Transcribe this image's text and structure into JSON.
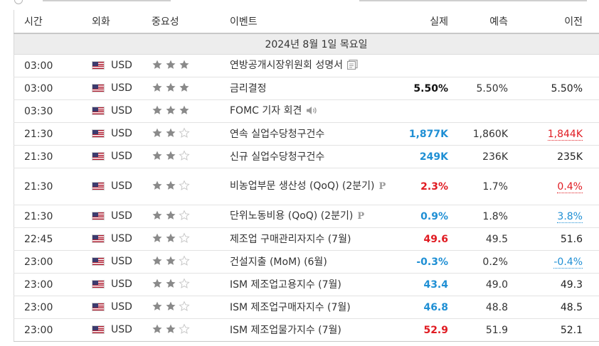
{
  "columns": {
    "time": "시간",
    "currency": "외화",
    "importance": "중요성",
    "event": "이벤트",
    "actual": "실제",
    "forecast": "예측",
    "previous": "이전"
  },
  "date_label": "2024년 8월 1일 목요일",
  "colors": {
    "actual_up": "#1f8fd4",
    "actual_down": "#e01b22",
    "star_filled": "#8a8a8a",
    "star_empty": "#c6c6c6",
    "date_row_bg": "#ededed"
  },
  "icons": {
    "speech": "document-icon",
    "audio": "speaker-icon",
    "preliminary": "preliminary-p-icon",
    "flag": "us-flag-icon"
  },
  "rows": [
    {
      "time": "03:00",
      "currency": "USD",
      "stars": 3,
      "event": "연방공개시장위원회 성명서",
      "icon": "document",
      "actual": "",
      "actual_class": "",
      "forecast": "",
      "previous": "",
      "previous_class": "prev-norm"
    },
    {
      "time": "03:00",
      "currency": "USD",
      "stars": 3,
      "event": "금리결정",
      "icon": "",
      "actual": "5.50%",
      "actual_class": "black",
      "forecast": "5.50%",
      "previous": "5.50%",
      "previous_class": "prev-norm"
    },
    {
      "time": "03:30",
      "currency": "USD",
      "stars": 3,
      "event": "FOMC 기자 회견",
      "icon": "speaker",
      "actual": "",
      "actual_class": "",
      "forecast": "",
      "previous": "",
      "previous_class": "prev-norm"
    },
    {
      "time": "21:30",
      "currency": "USD",
      "stars": 2,
      "event": "연속 실업수당청구건수",
      "icon": "",
      "actual": "1,877K",
      "actual_class": "blue",
      "forecast": "1,860K",
      "previous": "1,844K",
      "previous_class": "prev-red"
    },
    {
      "time": "21:30",
      "currency": "USD",
      "stars": 2,
      "event": "신규 실업수당청구건수",
      "icon": "",
      "actual": "249K",
      "actual_class": "blue",
      "forecast": "236K",
      "previous": "235K",
      "previous_class": "prev-norm"
    },
    {
      "time": "21:30",
      "currency": "USD",
      "stars": 2,
      "event": "비농업부문 생산성 (QoQ) (2분기)",
      "icon": "p",
      "actual": "2.3%",
      "actual_class": "red",
      "forecast": "1.7%",
      "previous": "0.4%",
      "previous_class": "prev-red",
      "tall": true
    },
    {
      "time": "21:30",
      "currency": "USD",
      "stars": 2,
      "event": "단위노동비용 (QoQ) (2분기)",
      "icon": "p",
      "actual": "0.9%",
      "actual_class": "blue",
      "forecast": "1.8%",
      "previous": "3.8%",
      "previous_class": "prev-blue"
    },
    {
      "time": "22:45",
      "currency": "USD",
      "stars": 2,
      "event": "제조업 구매관리자지수 (7월)",
      "icon": "",
      "actual": "49.6",
      "actual_class": "red",
      "forecast": "49.5",
      "previous": "51.6",
      "previous_class": "prev-norm"
    },
    {
      "time": "23:00",
      "currency": "USD",
      "stars": 2,
      "event": "건설지출 (MoM) (6월)",
      "icon": "",
      "actual": "-0.3%",
      "actual_class": "blue",
      "forecast": "0.2%",
      "previous": "-0.4%",
      "previous_class": "prev-blue"
    },
    {
      "time": "23:00",
      "currency": "USD",
      "stars": 2,
      "event": "ISM 제조업고용지수 (7월)",
      "icon": "",
      "actual": "43.4",
      "actual_class": "blue",
      "forecast": "49.0",
      "previous": "49.3",
      "previous_class": "prev-norm"
    },
    {
      "time": "23:00",
      "currency": "USD",
      "stars": 2,
      "event": "ISM 제조업구매자지수 (7월)",
      "icon": "",
      "actual": "46.8",
      "actual_class": "blue",
      "forecast": "48.8",
      "previous": "48.5",
      "previous_class": "prev-norm"
    },
    {
      "time": "23:00",
      "currency": "USD",
      "stars": 2,
      "event": "ISM 제조업물가지수 (7월)",
      "icon": "",
      "actual": "52.9",
      "actual_class": "red",
      "forecast": "51.9",
      "previous": "52.1",
      "previous_class": "prev-norm"
    }
  ]
}
